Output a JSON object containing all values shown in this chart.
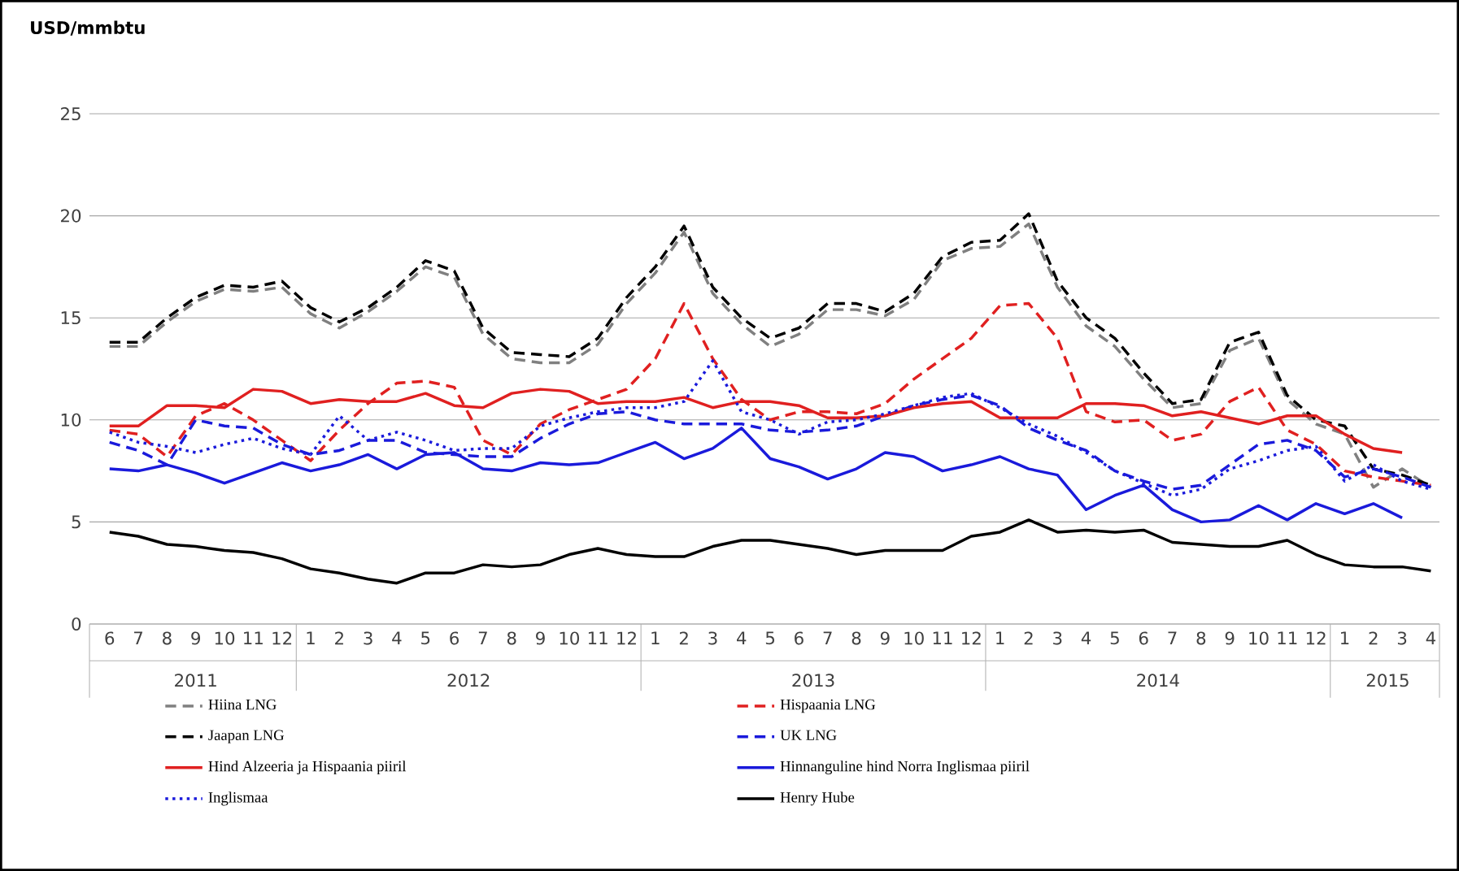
{
  "chart_data": {
    "type": "line",
    "ylabel": "USD/mmbtu",
    "categories": [
      "6",
      "7",
      "8",
      "9",
      "10",
      "11",
      "12",
      "1",
      "2",
      "3",
      "4",
      "5",
      "6",
      "7",
      "8",
      "9",
      "10",
      "11",
      "12",
      "1",
      "2",
      "3",
      "4",
      "5",
      "6",
      "7",
      "8",
      "9",
      "10",
      "11",
      "12",
      "1",
      "2",
      "3",
      "4",
      "5",
      "6",
      "7",
      "8",
      "9",
      "10",
      "11",
      "12",
      "1",
      "2",
      "3",
      "4"
    ],
    "annotations": [
      "2011",
      "2012",
      "2013",
      "2014",
      "2015"
    ],
    "ylim": [
      0,
      25
    ],
    "yticks": [
      0,
      5,
      10,
      15,
      20,
      25
    ],
    "grid": "y",
    "legend": "bottom",
    "series": [
      {
        "name": "Hiina LNG",
        "color": "#808080",
        "line_style": "dashed",
        "values": [
          13.6,
          13.6,
          14.8,
          15.8,
          16.4,
          16.3,
          16.5,
          15.2,
          14.5,
          15.3,
          16.3,
          17.5,
          17,
          14.2,
          13,
          12.8,
          12.8,
          13.7,
          15.7,
          17.2,
          19.2,
          16.2,
          14.7,
          13.6,
          14.2,
          15.4,
          15.4,
          15.1,
          15.9,
          17.8,
          18.4,
          18.5,
          19.6,
          16.5,
          14.6,
          13.6,
          12,
          10.6,
          10.8,
          13.4,
          14,
          11,
          9.8,
          9.3,
          6.7,
          7.6,
          6.7
        ]
      },
      {
        "name": "Hispaania LNG",
        "color": "#e02020",
        "line_style": "dashed",
        "values": [
          9.5,
          9.3,
          8.2,
          10.2,
          10.8,
          10.0,
          9.0,
          8.0,
          9.5,
          10.8,
          11.8,
          11.9,
          11.6,
          9.0,
          8.3,
          9.8,
          10.5,
          11.0,
          11.5,
          13.0,
          15.7,
          13.0,
          11,
          10.0,
          10.4,
          10.4,
          10.3,
          10.8,
          12.0,
          13.0,
          14.0,
          15.6,
          15.7,
          14,
          10.4,
          9.9,
          10,
          9.0,
          9.3,
          10.9,
          11.6,
          9.5,
          8.8,
          7.5,
          7.2,
          7,
          6.8
        ]
      },
      {
        "name": "Jaapan LNG",
        "color": "#000000",
        "line_style": "dashed",
        "values": [
          13.8,
          13.8,
          15,
          16,
          16.6,
          16.5,
          16.8,
          15.5,
          14.8,
          15.5,
          16.5,
          17.8,
          17.3,
          14.5,
          13.3,
          13.2,
          13.1,
          14,
          16,
          17.5,
          19.5,
          16.5,
          15,
          14,
          14.5,
          15.7,
          15.7,
          15.3,
          16.2,
          18,
          18.7,
          18.8,
          20.1,
          16.8,
          15,
          14,
          12.3,
          10.8,
          11,
          13.8,
          14.3,
          11.2,
          10,
          9.7,
          7.6,
          7.3,
          6.8
        ]
      },
      {
        "name": "UK LNG",
        "color": "#1a1adb",
        "line_style": "dashed",
        "values": [
          8.9,
          8.5,
          7.8,
          10,
          9.7,
          9.6,
          8.8,
          8.3,
          8.5,
          9.0,
          9.0,
          8.4,
          8.3,
          8.2,
          8.2,
          9.1,
          9.8,
          10.3,
          10.4,
          10.0,
          9.8,
          9.8,
          9.8,
          9.5,
          9.4,
          9.5,
          9.7,
          10.2,
          10.7,
          11.0,
          11.2,
          10.7,
          9.6,
          9.0,
          8.5,
          7.5,
          7.0,
          6.6,
          6.8,
          7.8,
          8.8,
          9.0,
          8.5,
          7.2,
          7.6,
          7.2,
          6.7
        ]
      },
      {
        "name": "Hind Alzeeria ja Hispaania piiril",
        "color": "#e02020",
        "line_style": "solid",
        "values": [
          9.7,
          9.7,
          10.7,
          10.7,
          10.6,
          11.5,
          11.4,
          10.8,
          11.0,
          10.9,
          10.9,
          11.3,
          10.7,
          10.6,
          11.3,
          11.5,
          11.4,
          10.8,
          10.9,
          10.9,
          11.1,
          10.6,
          10.9,
          10.9,
          10.7,
          10.1,
          10.1,
          10.2,
          10.6,
          10.8,
          10.9,
          10.1,
          10.1,
          10.1,
          10.8,
          10.8,
          10.7,
          10.2,
          10.4,
          10.1,
          9.8,
          10.2,
          10.2,
          9.3,
          8.6,
          8.4,
          null
        ]
      },
      {
        "name": "Hinnanguline hind Norra Inglismaa piiril",
        "color": "#1a1adb",
        "line_style": "solid",
        "values": [
          7.6,
          7.5,
          7.8,
          7.4,
          6.9,
          7.4,
          7.9,
          7.5,
          7.8,
          8.3,
          7.6,
          8.3,
          8.4,
          7.6,
          7.5,
          7.9,
          7.8,
          7.9,
          8.4,
          8.9,
          8.1,
          8.6,
          9.6,
          8.1,
          7.7,
          7.1,
          7.6,
          8.4,
          8.2,
          7.5,
          7.8,
          8.2,
          7.6,
          7.3,
          5.6,
          6.3,
          6.8,
          5.6,
          5.0,
          5.1,
          5.8,
          5.1,
          5.9,
          5.4,
          5.9,
          5.2,
          null
        ]
      },
      {
        "name": "Inglismaa",
        "color": "#1a1adb",
        "line_style": "dotted",
        "values": [
          9.4,
          8.9,
          8.7,
          8.4,
          8.8,
          9.1,
          8.6,
          8.3,
          10.2,
          9.0,
          9.4,
          9.0,
          8.5,
          8.6,
          8.6,
          9.7,
          10.1,
          10.4,
          10.6,
          10.6,
          10.9,
          12.9,
          10.4,
          10.0,
          9.3,
          9.9,
          10.0,
          10.3,
          10.7,
          11.1,
          11.3,
          10.6,
          9.8,
          9.2,
          8.4,
          7.5,
          6.9,
          6.3,
          6.6,
          7.6,
          8.0,
          8.5,
          8.7,
          7.0,
          7.8,
          7.0,
          6.6
        ]
      },
      {
        "name": "Henry Hube",
        "color": "#000000",
        "line_style": "solid",
        "values": [
          4.5,
          4.3,
          3.9,
          3.8,
          3.6,
          3.5,
          3.2,
          2.7,
          2.5,
          2.2,
          2.0,
          2.5,
          2.5,
          2.9,
          2.8,
          2.9,
          3.4,
          3.7,
          3.4,
          3.3,
          3.3,
          3.8,
          4.1,
          4.1,
          3.9,
          3.7,
          3.4,
          3.6,
          3.6,
          3.6,
          4.3,
          4.5,
          5.1,
          4.5,
          4.6,
          4.5,
          4.6,
          4.0,
          3.9,
          3.8,
          3.8,
          4.1,
          3.4,
          2.9,
          2.8,
          2.8,
          2.6
        ]
      }
    ]
  }
}
